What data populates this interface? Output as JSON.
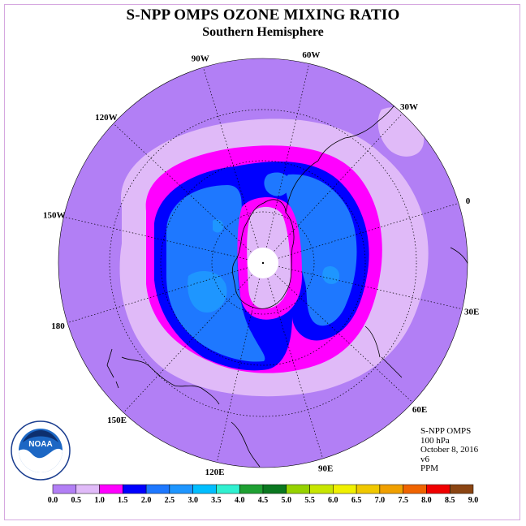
{
  "title": "S-NPP OMPS OZONE MIXING RATIO",
  "subtitle": "Southern Hemisphere",
  "meridian_labels": [
    "90W",
    "60W",
    "30W",
    "0",
    "30E",
    "60E",
    "90E",
    "120E",
    "150E",
    "180",
    "150W",
    "120W"
  ],
  "info": {
    "instrument": "S-NPP OMPS",
    "level": "100 hPa",
    "date": "October 8, 2016",
    "version": "v6",
    "units": "PPM"
  },
  "colorbar": {
    "ticks": [
      "0.0",
      "0.5",
      "1.0",
      "1.5",
      "2.0",
      "2.5",
      "3.0",
      "3.5",
      "4.0",
      "4.5",
      "5.0",
      "5.5",
      "6.0",
      "6.5",
      "7.0",
      "7.5",
      "8.0",
      "8.5",
      "9.0"
    ],
    "colors": [
      "#b27ff5",
      "#e0baf8",
      "#ff00ff",
      "#0000ff",
      "#1e78ff",
      "#1e96ff",
      "#00beff",
      "#30f0d0",
      "#1ea032",
      "#0a7820",
      "#96d200",
      "#c8e600",
      "#f0f000",
      "#f0c800",
      "#f0a000",
      "#f06400",
      "#f00000",
      "#8b4513"
    ]
  },
  "logo": {
    "text": "NOAA",
    "ring_text": "NATIONAL OCEANIC AND ATMOSPHERIC ADMINISTRATION · U.S. DEPARTMENT OF COMMERCE"
  }
}
